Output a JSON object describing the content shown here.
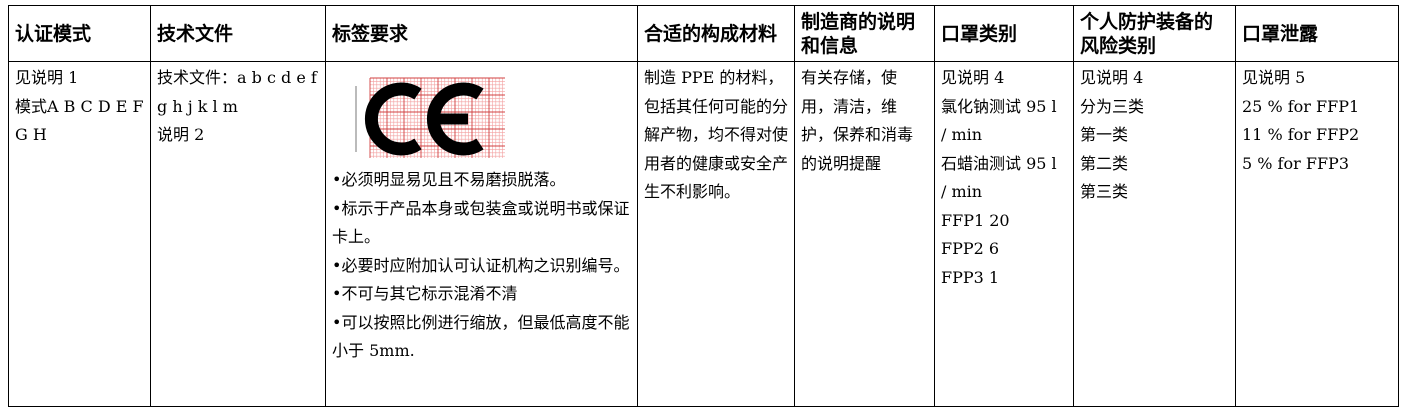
{
  "table": {
    "headers": [
      "认证模式",
      "技术文件",
      "标签要求",
      "合适的构成材料",
      "制造商的说明和信息",
      "口罩类别",
      "个人防护装备的风险类别",
      "口罩泄露"
    ],
    "rows": [
      [
        [
          "见说明 1",
          "模式A B C D E F G H"
        ],
        [
          "技术文件：a b c d e f g h j k l m",
          "说明 2"
        ],
        [
          "•必须明显易见且不易磨损脱落。",
          "•标示于产品本身或包装盒或说明书或保证卡上。",
          "•必要时应附加认可认证机构之识别编号。",
          "•不可与其它标示混淆不清",
          "•可以按照比例进行缩放，但最低高度不能小于 5mm."
        ],
        [
          "制造 PPE 的材料，包括其任何可能的分解产物，均不得对使用者的健康或安全产生不利影响。"
        ],
        [
          "有关存储，使用，清洁，维护，保养和消毒的说明提醒"
        ],
        [
          "见说明 4",
          "氯化钠测试 95 l / min",
          "石蜡油测试 95 l / min",
          "FFP1 20",
          "FPP2 6",
          "FPP3 1"
        ],
        [
          "见说明 4",
          "分为三类",
          "第一类",
          "第二类",
          "第三类"
        ],
        [
          "见说明 5",
          "25 % for FFP1",
          "11 % for FFP2",
          "5 % for FFP3"
        ]
      ]
    ]
  }
}
